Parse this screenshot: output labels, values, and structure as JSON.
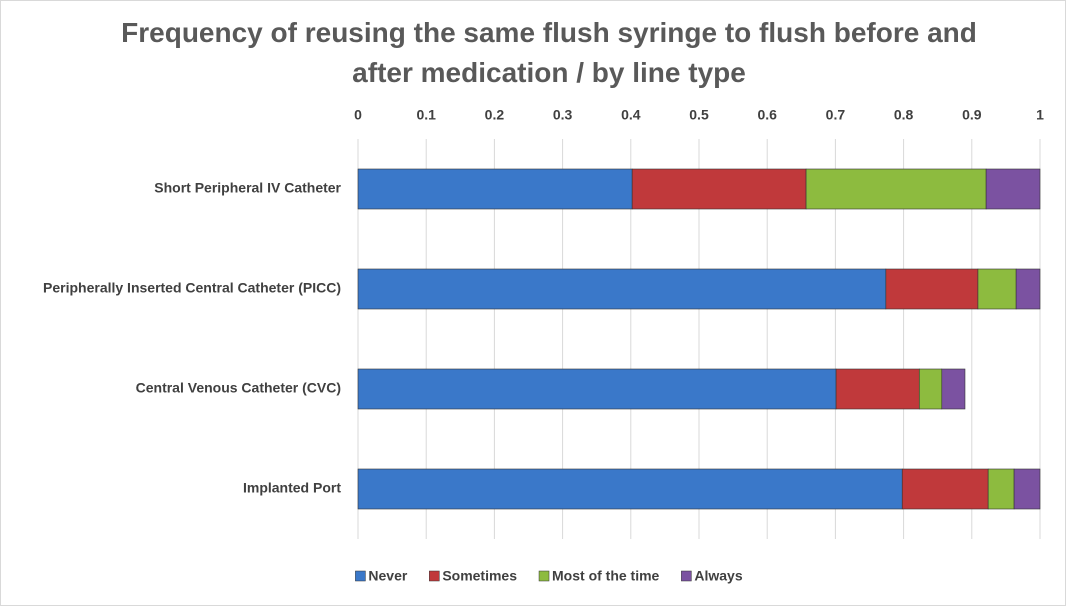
{
  "chart_data": {
    "type": "stacked-barh",
    "title": "Frequency of reusing the same flush syringe to flush before and after medication / by line type",
    "categories": [
      "Short Peripheral IV Catheter",
      "Peripherally Inserted Central Catheter (PICC)",
      "Central Venous Catheter (CVC)",
      "Implanted Port"
    ],
    "series": [
      {
        "name": "Never",
        "color": "#3a78c9",
        "values": [
          0.402,
          0.774,
          0.701,
          0.798
        ]
      },
      {
        "name": "Sometimes",
        "color": "#c0393b",
        "values": [
          0.255,
          0.135,
          0.122,
          0.126
        ]
      },
      {
        "name": "Most of the time",
        "color": "#8dbb3f",
        "values": [
          0.264,
          0.056,
          0.033,
          0.038
        ]
      },
      {
        "name": "Always",
        "color": "#7b52a1",
        "values": [
          0.079,
          0.035,
          0.034,
          0.038
        ]
      }
    ],
    "xlim": [
      0,
      1
    ],
    "xticks": [
      0,
      0.1,
      0.2,
      0.3,
      0.4,
      0.5,
      0.6,
      0.7,
      0.8,
      0.9,
      1
    ],
    "grid": true,
    "legend": "bottom"
  }
}
